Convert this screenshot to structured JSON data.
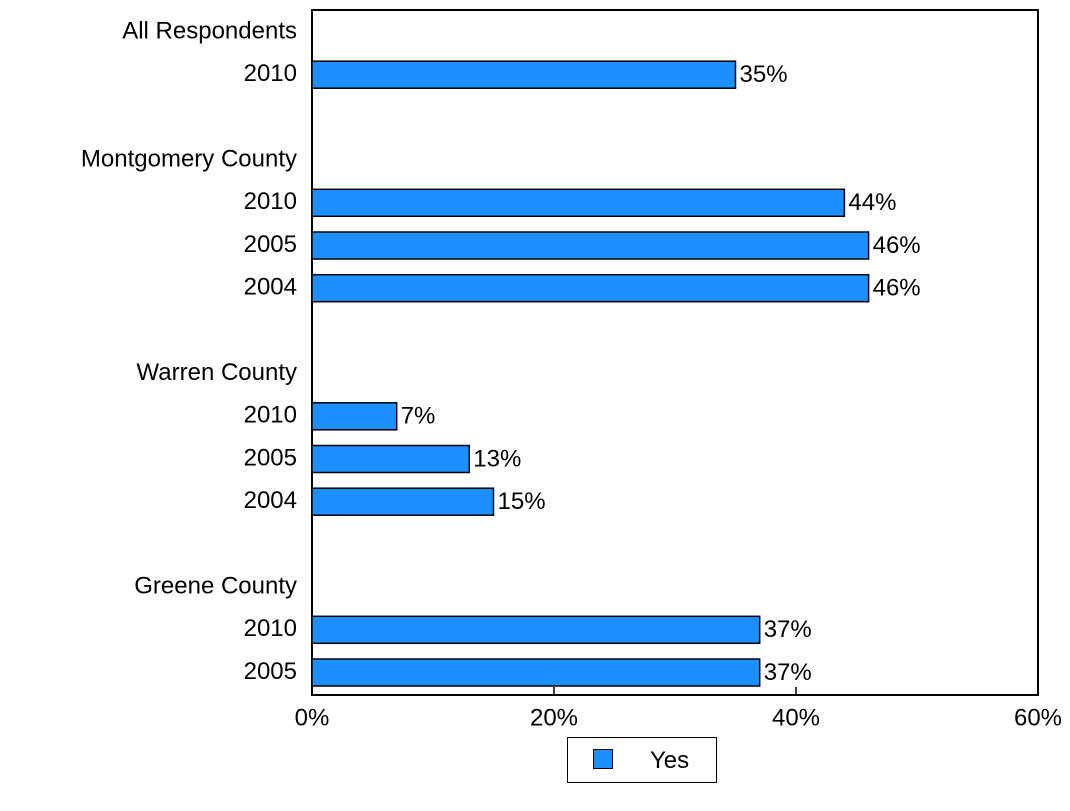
{
  "chart_data": {
    "type": "bar",
    "orientation": "horizontal",
    "xlim": [
      0,
      60
    ],
    "x_ticks": [
      "0%",
      "20%",
      "40%",
      "60%"
    ],
    "x_tick_values": [
      0,
      20,
      40,
      60
    ],
    "grid": false,
    "legend_placement": "bottom-center",
    "bar_color": "#1E8FFF",
    "groups": [
      {
        "label": "All Respondents",
        "rows": [
          {
            "category": "2010",
            "value": 35,
            "data_label": "35%"
          }
        ]
      },
      {
        "label": "Montgomery County",
        "rows": [
          {
            "category": "2010",
            "value": 44,
            "data_label": "44%"
          },
          {
            "category": "2005",
            "value": 46,
            "data_label": "46%"
          },
          {
            "category": "2004",
            "value": 46,
            "data_label": "46%"
          }
        ]
      },
      {
        "label": "Warren County",
        "rows": [
          {
            "category": "2010",
            "value": 7,
            "data_label": "7%"
          },
          {
            "category": "2005",
            "value": 13,
            "data_label": "13%"
          },
          {
            "category": "2004",
            "value": 15,
            "data_label": "15%"
          }
        ]
      },
      {
        "label": "Greene County",
        "rows": [
          {
            "category": "2010",
            "value": 37,
            "data_label": "37%"
          },
          {
            "category": "2005",
            "value": 37,
            "data_label": "37%"
          }
        ]
      }
    ],
    "series": [
      {
        "name": "Yes",
        "values": [
          35,
          44,
          46,
          46,
          7,
          13,
          15,
          37,
          37
        ]
      }
    ]
  },
  "legend": {
    "label": "Yes"
  }
}
